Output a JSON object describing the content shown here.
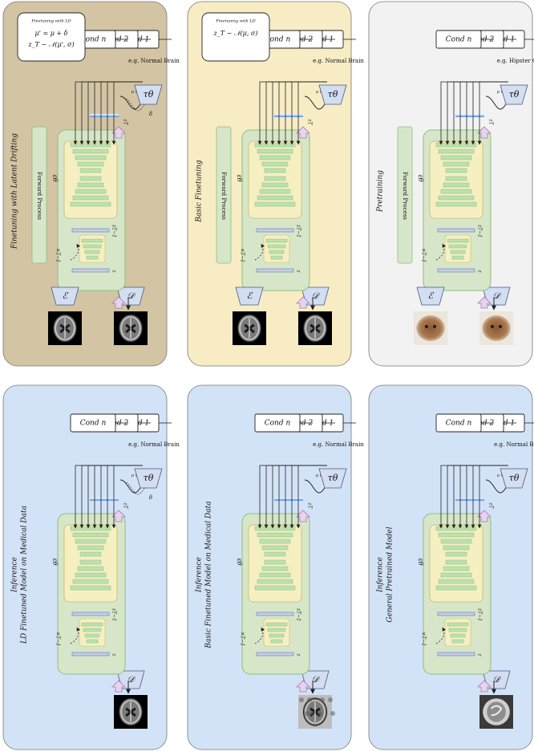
{
  "panels": [
    {
      "id": "ld-finetuning",
      "background": "#d3c4a3",
      "label_lines": [
        "Finetuning  with  Latent  Drifting"
      ],
      "mode": "train",
      "image_kind": "brain",
      "cond_example": "e.g. Normal Brain",
      "note_title": "Finetuning with LD",
      "note_lines": [
        "μ' = μ + δ",
        "z_T ~ 𝒩(μ', σ)"
      ],
      "shift_symbol": "δ"
    },
    {
      "id": "basic-finetuning",
      "background": "#f7ecc4",
      "label_lines": [
        "Basic  Finetuning"
      ],
      "mode": "train",
      "image_kind": "brain",
      "cond_example": "e.g. Normal Brain",
      "note_title": "Finetuning with LD",
      "note_lines": [
        "z_T ~ 𝒩(μ, σ)"
      ],
      "shift_symbol": ""
    },
    {
      "id": "pretraining",
      "background": "#f2f2f2",
      "label_lines": [
        "Pretraining"
      ],
      "mode": "train",
      "image_kind": "cat",
      "cond_example": "e.g. Hipster Cat",
      "note_title": "",
      "note_lines": [],
      "shift_symbol": ""
    },
    {
      "id": "inference-ld",
      "background": "#d3e3f7",
      "label_lines": [
        "Inference",
        "LD Finetuned Model on Medical Data"
      ],
      "mode": "infer",
      "image_kind": "brain",
      "cond_example": "e.g. Normal Brain",
      "note_title": "",
      "note_lines": [],
      "shift_symbol": "δ"
    },
    {
      "id": "inference-basic",
      "background": "#d3e3f7",
      "label_lines": [
        "Inference",
        "Basic Finetuned Model on Medical Data"
      ],
      "mode": "infer",
      "image_kind": "brain-noisy",
      "cond_example": "e.g. Normal Brain",
      "note_title": "",
      "note_lines": [],
      "shift_symbol": ""
    },
    {
      "id": "inference-general",
      "background": "#d3e3f7",
      "label_lines": [
        "Inference",
        "General Pretrained Model"
      ],
      "mode": "infer",
      "image_kind": "cat-gray",
      "cond_example": "e.g. Normal Brain",
      "note_title": "",
      "note_lines": [],
      "shift_symbol": ""
    }
  ],
  "labels": {
    "decoder": "𝒟",
    "encoder": "ℰ",
    "forward_process": "Forward Process",
    "tau": "τθ",
    "eps": "εθ",
    "z": "z",
    "z_t1": "zT−1",
    "z_T": "zT",
    "times_t": "×T−1",
    "mu_sigma": "μ σ",
    "cond_1": "Cond",
    "cond_1_idx": "1",
    "cond_2": "Cond",
    "cond_2_idx": "2",
    "cond_n": "Cond",
    "cond_n_idx": "n"
  },
  "colors": {
    "unet_outer": "#d7e6c8",
    "unet_inner": "#f5efc2",
    "unet_block": "#bde0b0",
    "unet_stroke": "#8cbf7c",
    "latent_bar": "#c5cde8",
    "arrow_fill": "#e8d3ee",
    "arrow_stroke": "#a27db3",
    "tau_fill": "#d3def3",
    "forward_fill": "#d7e6c8"
  }
}
